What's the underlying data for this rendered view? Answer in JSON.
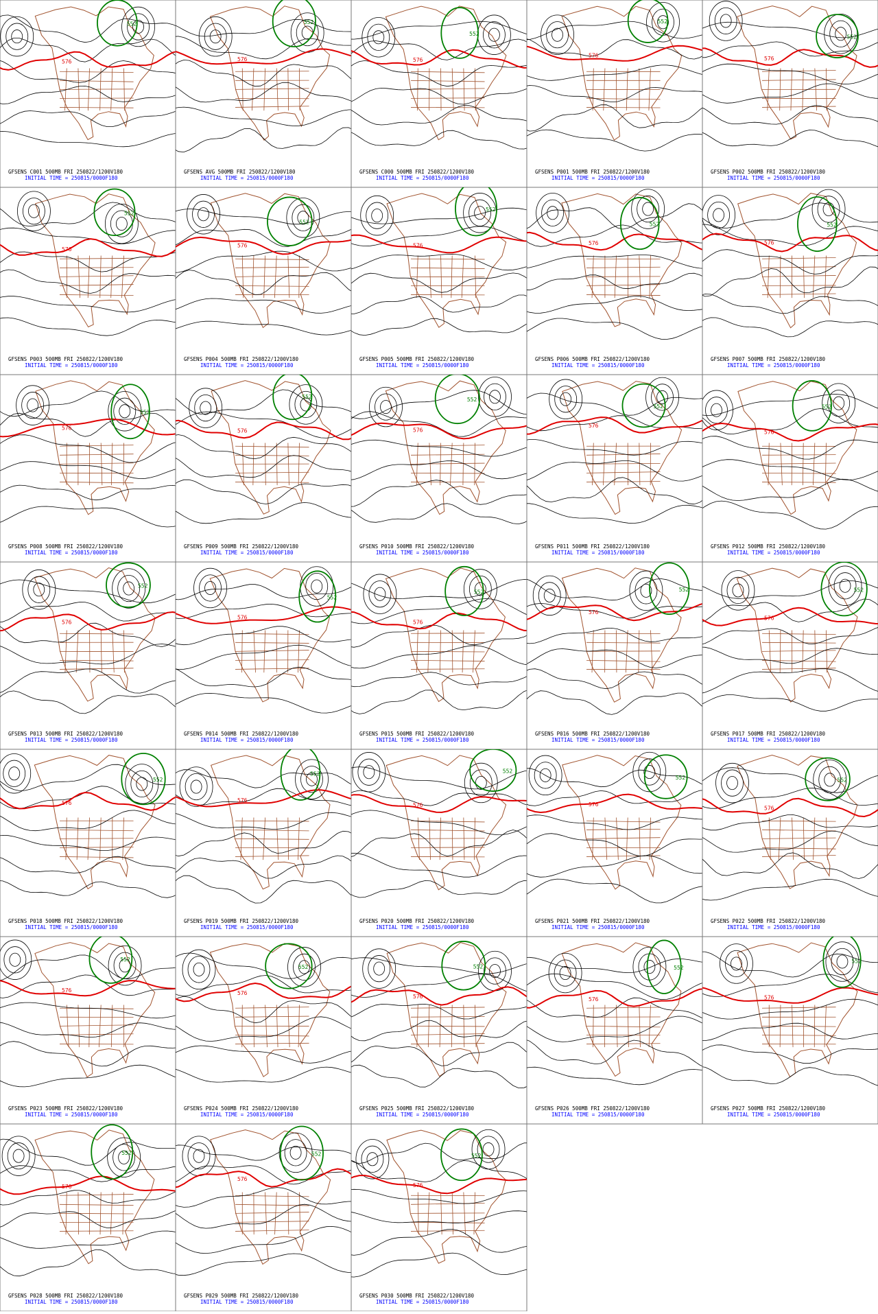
{
  "panels": [
    {
      "title": "GFSENS C001 500MB FRI 250822/1200V180",
      "initial_time": "INITIAL TIME = 250815/0000F180",
      "contour_labels": [
        "576",
        "552"
      ]
    },
    {
      "title": "GFSENS AVG 500MB FRI 250822/1200V180",
      "initial_time": "INITIAL TIME = 250815/0000F180",
      "contour_labels": [
        "576",
        "552"
      ]
    },
    {
      "title": "GFSENS C000 500MB FRI 250822/1200V180",
      "initial_time": "INITIAL TIME = 250815/0000F180",
      "contour_labels": [
        "576",
        "552"
      ]
    },
    {
      "title": "GFSENS P001 500MB FRI 250822/1200V180",
      "initial_time": "INITIAL TIME = 250815/0000F180",
      "contour_labels": [
        "576",
        "552"
      ]
    },
    {
      "title": "GFSENS P002 500MB FRI 250822/1200V180",
      "initial_time": "INITIAL TIME = 250815/0000F180",
      "contour_labels": [
        "576",
        "552"
      ]
    },
    {
      "title": "GFSENS P003 500MB FRI 250822/1200V180",
      "initial_time": "INITIAL TIME = 250815/0000F180",
      "contour_labels": [
        "576",
        "552"
      ]
    },
    {
      "title": "GFSENS P004 500MB FRI 250822/1200V180",
      "initial_time": "INITIAL TIME = 250815/0000F180",
      "contour_labels": [
        "576",
        "552"
      ]
    },
    {
      "title": "GFSENS P005 500MB FRI 250822/1200V180",
      "initial_time": "INITIAL TIME = 250815/0000F180",
      "contour_labels": [
        "576",
        "552"
      ]
    },
    {
      "title": "GFSENS P006 500MB FRI 250822/1200V180",
      "initial_time": "INITIAL TIME = 250815/0000F180",
      "contour_labels": [
        "576",
        "552"
      ]
    },
    {
      "title": "GFSENS P007 500MB FRI 250822/1200V180",
      "initial_time": "INITIAL TIME = 250815/0000F180",
      "contour_labels": [
        "576",
        "552"
      ]
    },
    {
      "title": "GFSENS P008 500MB FRI 250822/1200V180",
      "initial_time": "INITIAL TIME = 250815/0000F180",
      "contour_labels": [
        "576",
        "552"
      ]
    },
    {
      "title": "GFSENS P009 500MB FRI 250822/1200V180",
      "initial_time": "INITIAL TIME = 250815/0000F180",
      "contour_labels": [
        "576",
        "552"
      ]
    },
    {
      "title": "GFSENS P010 500MB FRI 250822/1200V180",
      "initial_time": "INITIAL TIME = 250815/0000F180",
      "contour_labels": [
        "576",
        "552"
      ]
    },
    {
      "title": "GFSENS P011 500MB FRI 250822/1200V180",
      "initial_time": "INITIAL TIME = 250815/0000F180",
      "contour_labels": [
        "576",
        "552"
      ]
    },
    {
      "title": "GFSENS P012 500MB FRI 250822/1200V180",
      "initial_time": "INITIAL TIME = 250815/0000F180",
      "contour_labels": [
        "576",
        "552"
      ]
    },
    {
      "title": "GFSENS P013 500MB FRI 250822/1200V180",
      "initial_time": "INITIAL TIME = 250815/0000F180",
      "contour_labels": [
        "576",
        "552"
      ]
    },
    {
      "title": "GFSENS P014 500MB FRI 250822/1200V180",
      "initial_time": "INITIAL TIME = 250815/0000F180",
      "contour_labels": [
        "576",
        "552"
      ]
    },
    {
      "title": "GFSENS P015 500MB FRI 250822/1200V180",
      "initial_time": "INITIAL TIME = 250815/0000F180",
      "contour_labels": [
        "576",
        "552"
      ]
    },
    {
      "title": "GFSENS P016 500MB FRI 250822/1200V180",
      "initial_time": "INITIAL TIME = 250815/0000F180",
      "contour_labels": [
        "576",
        "552"
      ]
    },
    {
      "title": "GFSENS P017 500MB FRI 250822/1200V180",
      "initial_time": "INITIAL TIME = 250815/0000F180",
      "contour_labels": [
        "576",
        "552"
      ]
    },
    {
      "title": "GFSENS P018 500MB FRI 250822/1200V180",
      "initial_time": "INITIAL TIME = 250815/0000F180",
      "contour_labels": [
        "576",
        "552"
      ]
    },
    {
      "title": "GFSENS P019 500MB FRI 250822/1200V180",
      "initial_time": "INITIAL TIME = 250815/0000F180",
      "contour_labels": [
        "576",
        "552"
      ]
    },
    {
      "title": "GFSENS P020 500MB FRI 250822/1200V180",
      "initial_time": "INITIAL TIME = 250815/0000F180",
      "contour_labels": [
        "576",
        "552"
      ]
    },
    {
      "title": "GFSENS P021 500MB FRI 250822/1200V180",
      "initial_time": "INITIAL TIME = 250815/0000F180",
      "contour_labels": [
        "576",
        "552"
      ]
    },
    {
      "title": "GFSENS P022 500MB FRI 250822/1200V180",
      "initial_time": "INITIAL TIME = 250815/0000F180",
      "contour_labels": [
        "576",
        "552"
      ]
    },
    {
      "title": "GFSENS P023 500MB FRI 250822/1200V180",
      "initial_time": "INITIAL TIME = 250815/0000F180",
      "contour_labels": [
        "576",
        "552"
      ]
    },
    {
      "title": "GFSENS P024 500MB FRI 250822/1200V180",
      "initial_time": "INITIAL TIME = 250815/0000F180",
      "contour_labels": [
        "576",
        "552"
      ]
    },
    {
      "title": "GFSENS P025 500MB FRI 250822/1200V180",
      "initial_time": "INITIAL TIME = 250815/0000F180",
      "contour_labels": [
        "576",
        "552"
      ]
    },
    {
      "title": "GFSENS P026 500MB FRI 250822/1200V180",
      "initial_time": "INITIAL TIME = 250815/0000F180",
      "contour_labels": [
        "576",
        "552"
      ]
    },
    {
      "title": "GFSENS P027 500MB FRI 250822/1200V180",
      "initial_time": "INITIAL TIME = 250815/0000F180",
      "contour_labels": [
        "576",
        "552"
      ]
    },
    {
      "title": "GFSENS P028 500MB FRI 250822/1200V180",
      "initial_time": "INITIAL TIME = 250815/0000F180",
      "contour_labels": [
        "576",
        "552"
      ]
    },
    {
      "title": "GFSENS P029 500MB FRI 250822/1200V180",
      "initial_time": "INITIAL TIME = 250815/0000F180",
      "contour_labels": [
        "576",
        "552"
      ]
    },
    {
      "title": "GFSENS P030 500MB FRI 250822/1200V180",
      "initial_time": "INITIAL TIME = 250815/0000F180",
      "contour_labels": [
        "576",
        "552"
      ]
    }
  ]
}
